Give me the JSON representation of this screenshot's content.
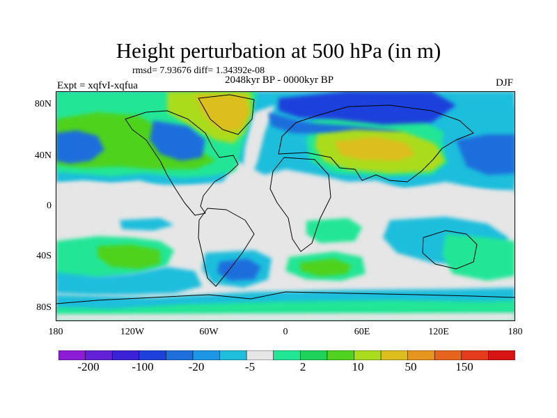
{
  "title": "Height perturbation at 500 hPa (in m)",
  "stats": "rmsd= 7.93676 diff= 1.34392e-08",
  "experiment": "Expt = xqfvI-xqfua",
  "period": "2048kyr BP - 0000kyr BP",
  "season": "DJF",
  "axes": {
    "lat_labels": [
      "80N",
      "40N",
      "0",
      "40S",
      "80S"
    ],
    "lon_labels": [
      "180",
      "120W",
      "60W",
      "0",
      "60E",
      "120E",
      "180"
    ]
  },
  "colorbar": {
    "labels": [
      "-200",
      "-100",
      "-20",
      "-5",
      "2",
      "10",
      "50",
      "150"
    ],
    "colors": [
      "#8c1cd6",
      "#6420d6",
      "#3c22d6",
      "#1e40dc",
      "#1e6edc",
      "#1e96e6",
      "#1ebedc",
      "#e6e6e6",
      "#20e696",
      "#1ed25a",
      "#50d21e",
      "#aadc1e",
      "#dcbe1e",
      "#e6961e",
      "#e6641e",
      "#e63c1e",
      "#d81414"
    ]
  },
  "palette": {
    "ocean": "#e6e6e6",
    "coast": "#000000"
  }
}
